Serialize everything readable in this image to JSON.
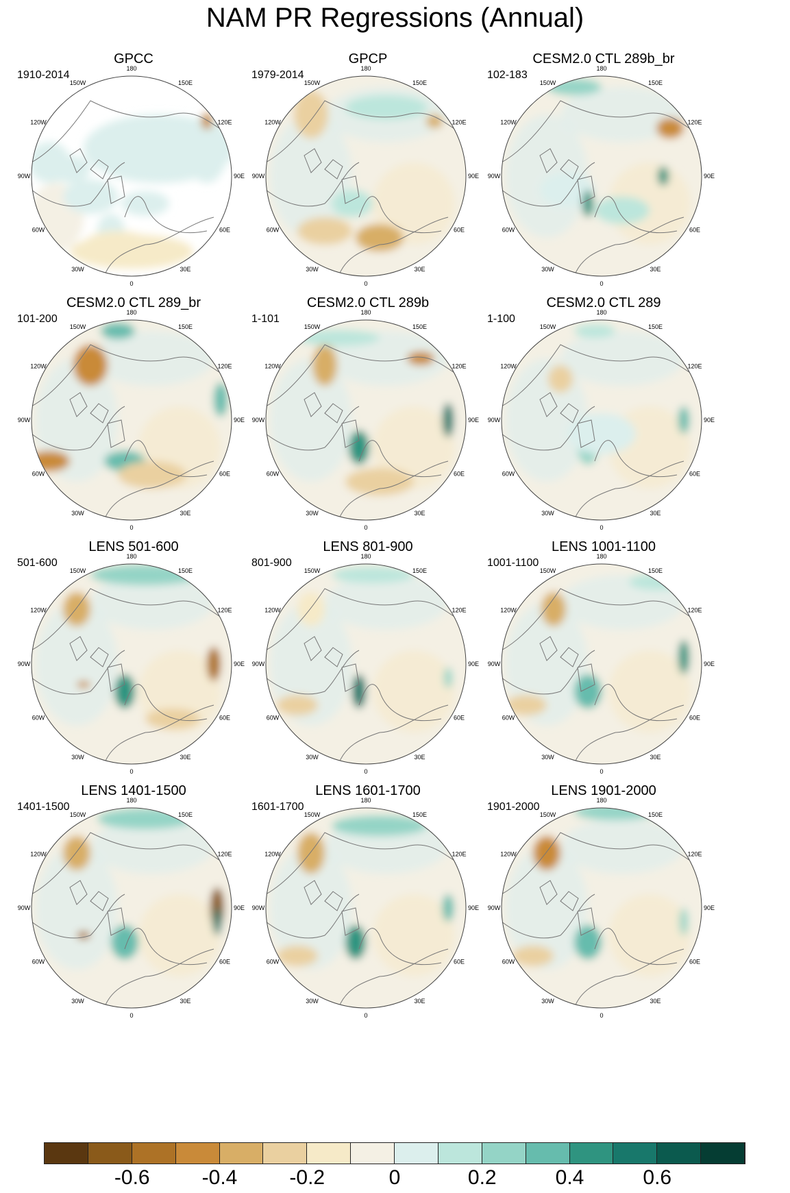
{
  "title": "NAM PR Regressions (Annual)",
  "panels": [
    {
      "title": "GPCC",
      "range": "1910-2014"
    },
    {
      "title": "GPCP",
      "range": "1979-2014"
    },
    {
      "title": "CESM2.0 CTL 289b_br",
      "range": "102-183"
    },
    {
      "title": "CESM2.0 CTL 289_br",
      "range": "101-200"
    },
    {
      "title": "CESM2.0 CTL 289b",
      "range": "1-101"
    },
    {
      "title": "CESM2.0 CTL 289",
      "range": "1-100"
    },
    {
      "title": "LENS 501-600",
      "range": "501-600"
    },
    {
      "title": "LENS 801-900",
      "range": "801-900"
    },
    {
      "title": "LENS 1001-1100",
      "range": "1001-1100"
    },
    {
      "title": "LENS 1401-1500",
      "range": "1401-1500"
    },
    {
      "title": "LENS 1601-1700",
      "range": "1601-1700"
    },
    {
      "title": "LENS 1901-2000",
      "range": "1901-2000"
    }
  ],
  "longitude_labels": [
    "180",
    "150E",
    "120E",
    "90E",
    "60E",
    "30E",
    "0",
    "30W",
    "60W",
    "90W",
    "120W",
    "150W"
  ],
  "colorbar": {
    "colors": [
      "#5a3710",
      "#8a5a1a",
      "#ad7226",
      "#c98a39",
      "#d8ae66",
      "#ead0a0",
      "#f6eac8",
      "#f4f0e4",
      "#dcefed",
      "#bce6dc",
      "#94d4c6",
      "#66bcad",
      "#2f9480",
      "#18786b",
      "#0b5a4e",
      "#053d33"
    ],
    "tick_labels": [
      "-0.6",
      "-0.4",
      "-0.2",
      "0",
      "0.2",
      "0.4",
      "0.6"
    ]
  }
}
